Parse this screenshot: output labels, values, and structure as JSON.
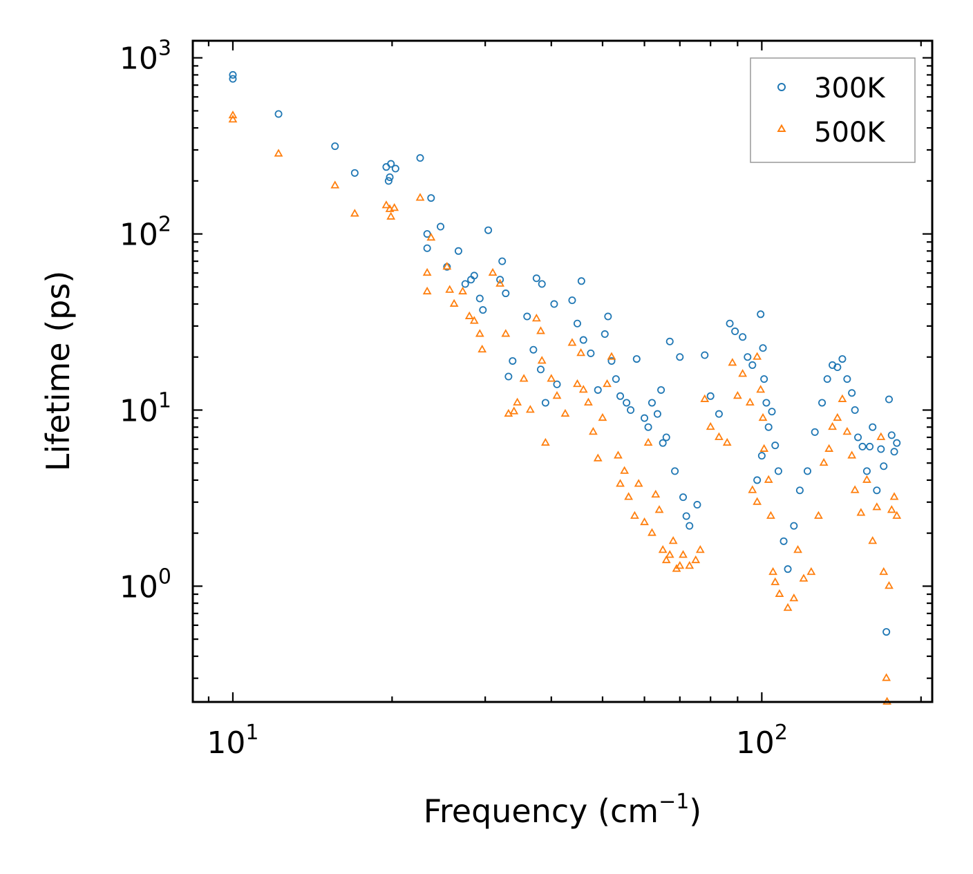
{
  "chart_data": {
    "type": "scatter",
    "xscale": "log",
    "yscale": "log",
    "xlim": [
      8.4,
      210
    ],
    "ylim": [
      0.22,
      1250
    ],
    "xlabel": {
      "base": "Frequency (cm",
      "sup": "−1",
      "tail": ")"
    },
    "ylabel": "Lifetime (ps)",
    "xticks": [
      {
        "base": "10",
        "exp": "1",
        "value": 10
      },
      {
        "base": "10",
        "exp": "2",
        "value": 100
      }
    ],
    "yticks": [
      {
        "base": "10",
        "exp": "0",
        "value": 1
      },
      {
        "base": "10",
        "exp": "1",
        "value": 10
      },
      {
        "base": "10",
        "exp": "2",
        "value": 100
      },
      {
        "base": "10",
        "exp": "3",
        "value": 1000
      }
    ],
    "legend": {
      "position": "top-right"
    },
    "series": [
      {
        "name": "300K",
        "color": "#1f77b4",
        "marker": "circle",
        "points": [
          [
            10.0,
            800
          ],
          [
            10.0,
            760
          ],
          [
            12.2,
            480
          ],
          [
            15.6,
            315
          ],
          [
            17.0,
            222
          ],
          [
            19.5,
            240
          ],
          [
            19.8,
            210
          ],
          [
            19.9,
            250
          ],
          [
            20.3,
            235
          ],
          [
            19.7,
            200
          ],
          [
            22.6,
            270
          ],
          [
            23.7,
            160
          ],
          [
            24.7,
            110
          ],
          [
            23.3,
            100
          ],
          [
            23.3,
            83
          ],
          [
            26.7,
            80
          ],
          [
            25.4,
            65
          ],
          [
            27.5,
            52
          ],
          [
            28.2,
            55
          ],
          [
            28.6,
            58
          ],
          [
            29.3,
            43
          ],
          [
            29.7,
            37
          ],
          [
            30.4,
            105
          ],
          [
            32.0,
            55
          ],
          [
            32.3,
            70
          ],
          [
            32.8,
            46
          ],
          [
            33.2,
            15.5
          ],
          [
            33.8,
            19
          ],
          [
            36.0,
            34
          ],
          [
            37.0,
            22
          ],
          [
            37.5,
            56
          ],
          [
            38.4,
            52
          ],
          [
            38.2,
            17
          ],
          [
            39.0,
            11
          ],
          [
            40.5,
            40
          ],
          [
            41.0,
            14
          ],
          [
            43.8,
            42
          ],
          [
            44.8,
            31
          ],
          [
            45.6,
            54
          ],
          [
            46.0,
            25
          ],
          [
            47.5,
            21
          ],
          [
            49.0,
            13
          ],
          [
            50.5,
            27
          ],
          [
            51.2,
            34
          ],
          [
            52.0,
            19
          ],
          [
            53.0,
            15
          ],
          [
            54.0,
            12
          ],
          [
            55.5,
            11
          ],
          [
            56.5,
            10
          ],
          [
            58.0,
            19.5
          ],
          [
            60.0,
            9
          ],
          [
            61.0,
            8
          ],
          [
            62.0,
            11
          ],
          [
            63.5,
            9.5
          ],
          [
            64.5,
            13
          ],
          [
            65.0,
            6.5
          ],
          [
            66.0,
            7
          ],
          [
            67.0,
            24.5
          ],
          [
            68.5,
            4.5
          ],
          [
            70.0,
            20
          ],
          [
            71.0,
            3.2
          ],
          [
            72.0,
            2.5
          ],
          [
            73.0,
            2.2
          ],
          [
            75.5,
            2.9
          ],
          [
            78.0,
            20.5
          ],
          [
            80.0,
            12
          ],
          [
            83.0,
            9.5
          ],
          [
            87.0,
            31
          ],
          [
            89.0,
            28
          ],
          [
            92.0,
            26
          ],
          [
            94.0,
            20
          ],
          [
            96.0,
            18
          ],
          [
            99.5,
            35
          ],
          [
            100.5,
            22.5
          ],
          [
            101.0,
            15
          ],
          [
            102.0,
            11
          ],
          [
            103.0,
            8
          ],
          [
            104.5,
            9.8
          ],
          [
            106.0,
            6.3
          ],
          [
            107.5,
            4.5
          ],
          [
            98.0,
            4.0
          ],
          [
            100.0,
            5.5
          ],
          [
            110.0,
            1.8
          ],
          [
            112.0,
            1.25
          ],
          [
            115.0,
            2.2
          ],
          [
            118.0,
            3.5
          ],
          [
            122.0,
            4.5
          ],
          [
            126.0,
            7.5
          ],
          [
            130.0,
            11
          ],
          [
            133.0,
            15
          ],
          [
            136.0,
            18
          ],
          [
            139.0,
            17.5
          ],
          [
            142.0,
            19.5
          ],
          [
            145.0,
            15
          ],
          [
            148.0,
            12.5
          ],
          [
            150.0,
            10
          ],
          [
            152.0,
            7
          ],
          [
            155.0,
            6.2
          ],
          [
            158.0,
            4.5
          ],
          [
            160.0,
            6.2
          ],
          [
            162.0,
            8
          ],
          [
            165.0,
            3.5
          ],
          [
            168.0,
            6
          ],
          [
            170.0,
            4.8
          ],
          [
            172.0,
            0.55
          ],
          [
            174.0,
            11.5
          ],
          [
            176.0,
            7.2
          ],
          [
            178.0,
            5.8
          ],
          [
            180.0,
            6.5
          ]
        ]
      },
      {
        "name": "500K",
        "color": "#ff7f0e",
        "marker": "triangle",
        "points": [
          [
            10.0,
            470
          ],
          [
            10.0,
            445
          ],
          [
            12.2,
            285
          ],
          [
            15.6,
            188
          ],
          [
            17.0,
            130
          ],
          [
            19.5,
            145
          ],
          [
            19.8,
            138
          ],
          [
            20.2,
            140
          ],
          [
            19.9,
            125
          ],
          [
            22.6,
            160
          ],
          [
            23.7,
            95
          ],
          [
            23.3,
            60
          ],
          [
            23.3,
            47
          ],
          [
            25.4,
            65
          ],
          [
            25.7,
            48
          ],
          [
            26.2,
            40
          ],
          [
            27.2,
            47
          ],
          [
            28.0,
            34
          ],
          [
            28.6,
            32
          ],
          [
            29.3,
            27
          ],
          [
            29.6,
            22
          ],
          [
            31.0,
            60
          ],
          [
            32.0,
            52
          ],
          [
            32.8,
            27
          ],
          [
            33.2,
            9.5
          ],
          [
            34.0,
            9.8
          ],
          [
            34.5,
            11
          ],
          [
            35.5,
            15
          ],
          [
            36.5,
            10
          ],
          [
            37.5,
            33
          ],
          [
            38.2,
            28
          ],
          [
            38.4,
            19
          ],
          [
            39.0,
            6.5
          ],
          [
            40.0,
            15
          ],
          [
            41.0,
            12
          ],
          [
            42.5,
            9.5
          ],
          [
            43.8,
            24
          ],
          [
            44.8,
            14
          ],
          [
            45.5,
            21
          ],
          [
            46.0,
            13
          ],
          [
            47.0,
            11
          ],
          [
            48.0,
            7.5
          ],
          [
            49.0,
            5.3
          ],
          [
            50.0,
            9
          ],
          [
            51.0,
            14
          ],
          [
            52.0,
            20
          ],
          [
            53.5,
            5.5
          ],
          [
            54.0,
            3.8
          ],
          [
            55.0,
            4.5
          ],
          [
            56.0,
            3.2
          ],
          [
            57.5,
            2.5
          ],
          [
            58.5,
            3.8
          ],
          [
            60.0,
            2.3
          ],
          [
            61.0,
            6.5
          ],
          [
            62.0,
            2.0
          ],
          [
            63.0,
            3.3
          ],
          [
            64.0,
            2.7
          ],
          [
            65.0,
            1.6
          ],
          [
            66.0,
            1.4
          ],
          [
            67.0,
            1.5
          ],
          [
            68.0,
            1.8
          ],
          [
            69.0,
            1.25
          ],
          [
            70.0,
            1.3
          ],
          [
            71.0,
            1.5
          ],
          [
            73.0,
            1.3
          ],
          [
            75.0,
            1.4
          ],
          [
            76.5,
            1.6
          ],
          [
            78.0,
            11.5
          ],
          [
            80.0,
            8
          ],
          [
            83.0,
            7
          ],
          [
            86.0,
            6.5
          ],
          [
            88.0,
            18.5
          ],
          [
            90.0,
            12
          ],
          [
            92.0,
            16
          ],
          [
            95.0,
            11
          ],
          [
            98.0,
            20
          ],
          [
            99.5,
            13
          ],
          [
            100.5,
            9
          ],
          [
            101.0,
            6
          ],
          [
            103.0,
            4
          ],
          [
            104.0,
            2.5
          ],
          [
            105.0,
            1.2
          ],
          [
            106.0,
            1.05
          ],
          [
            98.0,
            3.0
          ],
          [
            96.0,
            3.5
          ],
          [
            108.0,
            0.9
          ],
          [
            112.0,
            0.75
          ],
          [
            115.0,
            0.85
          ],
          [
            117.0,
            1.6
          ],
          [
            120.0,
            1.1
          ],
          [
            124.0,
            1.2
          ],
          [
            128.0,
            2.5
          ],
          [
            131.0,
            5
          ],
          [
            134.0,
            6
          ],
          [
            136.0,
            8
          ],
          [
            139.0,
            9
          ],
          [
            142.0,
            11.5
          ],
          [
            145.0,
            7.5
          ],
          [
            148.0,
            5.5
          ],
          [
            150.0,
            3.5
          ],
          [
            154.0,
            2.6
          ],
          [
            158.0,
            4.0
          ],
          [
            162.0,
            1.8
          ],
          [
            165.0,
            2.8
          ],
          [
            168.0,
            7
          ],
          [
            170.0,
            1.2
          ],
          [
            172.0,
            0.3
          ],
          [
            172.5,
            0.22
          ],
          [
            174.0,
            1.0
          ],
          [
            176.0,
            2.7
          ],
          [
            178.0,
            3.2
          ],
          [
            180.0,
            2.5
          ]
        ]
      }
    ]
  }
}
